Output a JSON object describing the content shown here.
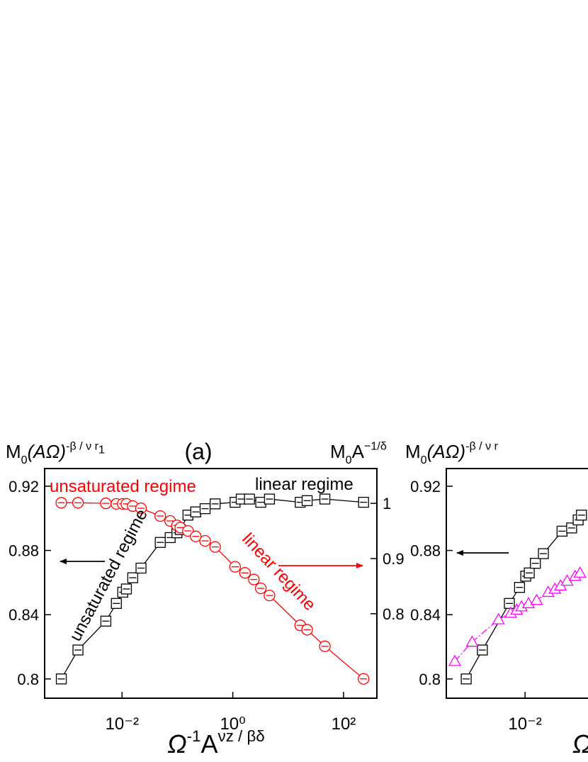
{
  "chart_data": [
    {
      "type": "line",
      "title": "(a)",
      "ylabel": {
        "base": "M",
        "sub": "0",
        "rest": "(AΩ)",
        "sup": "-β / ν r",
        "supsub": "1"
      },
      "y2label": {
        "base": "M",
        "sub": "0",
        "rest": "A",
        "sup": "−1/δ"
      },
      "xlabel": {
        "base": "Ω",
        "sup": "-1",
        "rest": "A",
        "sup2": "νz / βδ"
      },
      "xlog": true,
      "xlim": [
        0.0004,
        400
      ],
      "xticks": [
        {
          "value": 0.01,
          "label": "10⁻²"
        },
        {
          "value": 1,
          "label": "10⁰"
        },
        {
          "value": 100,
          "label": "10²"
        }
      ],
      "ylim": [
        0.788,
        0.931
      ],
      "yticks": [
        0.8,
        0.84,
        0.88,
        0.92
      ],
      "y2lim": [
        0.647,
        1.063
      ],
      "y2ticks": [
        0.8,
        0.9,
        1
      ],
      "series": [
        {
          "color": "#000000",
          "marker": "square",
          "x": [
            0.0008,
            0.0016,
            0.0051,
            0.0079,
            0.0103,
            0.012,
            0.0156,
            0.022,
            0.049,
            0.074,
            0.098,
            0.113,
            0.155,
            0.214,
            0.316,
            0.48,
            1.1,
            1.42,
            2.0,
            3.2,
            4.6,
            16.5,
            22,
            46,
            230
          ],
          "values": [
            0.8,
            0.818,
            0.836,
            0.847,
            0.854,
            0.856,
            0.863,
            0.869,
            0.885,
            0.888,
            0.891,
            0.893,
            0.902,
            0.904,
            0.906,
            0.909,
            0.91,
            0.912,
            0.912,
            0.91,
            0.912,
            0.91,
            0.911,
            0.912,
            0.91
          ]
        },
        {
          "color": "#ff0000",
          "marker": "circle",
          "axis": "y2",
          "x": [
            0.0008,
            0.0016,
            0.0051,
            0.0079,
            0.0103,
            0.012,
            0.0156,
            0.022,
            0.049,
            0.074,
            0.098,
            0.113,
            0.155,
            0.214,
            0.316,
            0.48,
            1.1,
            1.66,
            2.4,
            3.2,
            4.6,
            16.5,
            22,
            46,
            230
          ],
          "values": [
            1.001,
            1.001,
            1.0,
            0.999,
            0.999,
            0.999,
            0.995,
            0.991,
            0.977,
            0.968,
            0.96,
            0.956,
            0.95,
            0.94,
            0.932,
            0.921,
            0.885,
            0.874,
            0.862,
            0.846,
            0.833,
            0.779,
            0.771,
            0.741,
            0.682
          ]
        }
      ],
      "annotations": [
        {
          "text": "unsaturated regime",
          "color": "#ff0000"
        },
        {
          "text": "linear regime",
          "color": "#000000"
        },
        {
          "text": "unsaturated regime",
          "color": "#000000"
        },
        {
          "text": "linear regime",
          "color": "#ff0000"
        }
      ]
    },
    {
      "type": "line",
      "ylabel": {
        "base": "M",
        "sub": "0",
        "rest": "(AΩ)",
        "sup": "-β / ν r"
      },
      "xlabel": {
        "base": "Ω"
      },
      "xlog": true,
      "xlim": [
        0.00034,
        537
      ],
      "xticks": [
        {
          "value": 0.01,
          "label": "10⁻²"
        }
      ],
      "ylim": [
        0.788,
        0.931
      ],
      "yticks": [
        0.8,
        0.84,
        0.88,
        0.92
      ],
      "series": [
        {
          "color": "#000000",
          "marker": "square",
          "x": [
            0.0008,
            0.0016,
            0.0051,
            0.0079,
            0.0103,
            0.012,
            0.0156,
            0.022,
            0.049,
            0.074,
            0.098,
            0.113
          ],
          "values": [
            0.8,
            0.818,
            0.847,
            0.857,
            0.864,
            0.866,
            0.872,
            0.878,
            0.892,
            0.894,
            0.899,
            0.902
          ]
        },
        {
          "color": "#ff00ff",
          "marker": "triangle",
          "x": [
            0.00049,
            0.00103,
            0.0032,
            0.0054,
            0.007,
            0.0086,
            0.0116,
            0.0165,
            0.027,
            0.036,
            0.046,
            0.061,
            0.086,
            0.106
          ],
          "values": [
            0.811,
            0.823,
            0.837,
            0.841,
            0.843,
            0.845,
            0.847,
            0.849,
            0.854,
            0.856,
            0.858,
            0.861,
            0.864,
            0.866
          ]
        }
      ]
    }
  ]
}
